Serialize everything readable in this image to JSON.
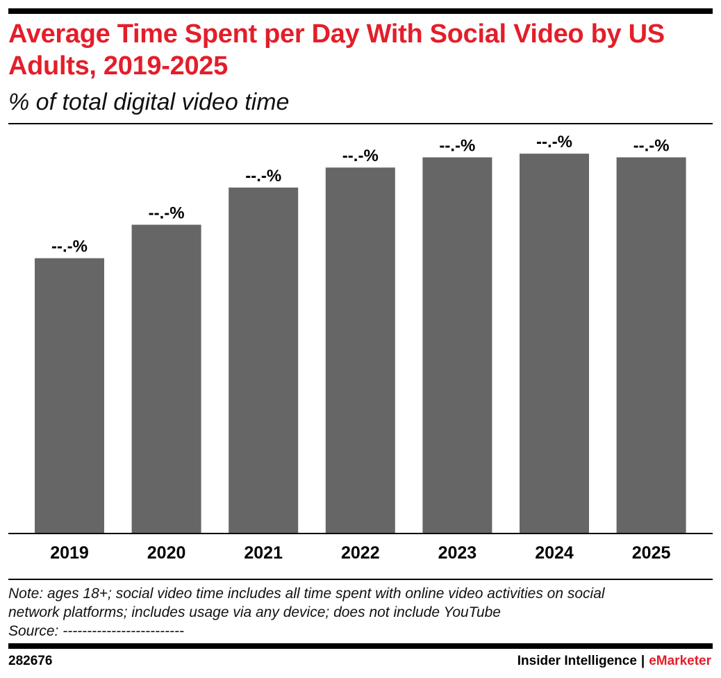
{
  "header": {
    "title": "Average Time Spent per Day With Social Video by US Adults, 2019-2025",
    "subtitle": "% of total digital video time"
  },
  "chart_data": {
    "type": "bar",
    "categories": [
      "2019",
      "2020",
      "2021",
      "2022",
      "2023",
      "2024",
      "2025"
    ],
    "values": [
      67.4,
      75.6,
      84.7,
      89.6,
      92.1,
      93.0,
      92.1
    ],
    "data_labels": [
      "--.-%",
      "--.-%",
      "--.-%",
      "--.-%",
      "--.-%",
      "--.-%",
      "--.-%"
    ],
    "ylim": [
      0,
      100
    ],
    "grid": false,
    "legend": "none",
    "bar_color": "#666666"
  },
  "footnote": {
    "note_line1": "Note: ages 18+; social video time includes all time spent with online video activities on social",
    "note_line2": "network platforms; includes usage via any device; does not include YouTube",
    "source": "Source: -------------------------"
  },
  "footer": {
    "chart_id": "282676",
    "brand_primary": "Insider Intelligence",
    "brand_separator": "|",
    "brand_accent": "eMarketer"
  },
  "colors": {
    "accent": "#e31e2a",
    "bar": "#666666",
    "text": "#000000"
  }
}
